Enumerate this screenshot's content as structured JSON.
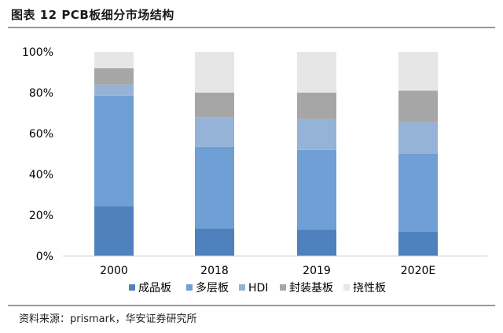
{
  "header": {
    "title": "图表 12 PCB板细分市场结构"
  },
  "footer": {
    "source": "资料来源：prismark，华安证券研究所"
  },
  "chart_data": {
    "type": "bar",
    "stacked": true,
    "categories": [
      "2000",
      "2018",
      "2019",
      "2020E"
    ],
    "series": [
      {
        "name": "成品板",
        "color": "#4f81bd",
        "values": [
          24.5,
          13.5,
          13,
          12
        ]
      },
      {
        "name": "多层板",
        "color": "#6f9fd4",
        "values": [
          54,
          40,
          39,
          38
        ]
      },
      {
        "name": "HDI",
        "color": "#95b3d7",
        "values": [
          5.5,
          14.5,
          15,
          15.5
        ]
      },
      {
        "name": "封装基板",
        "color": "#a6a6a6",
        "values": [
          8,
          12,
          13,
          15.5
        ]
      },
      {
        "name": "挠性板",
        "color": "#e6e6e6",
        "values": [
          8,
          20,
          20,
          19
        ]
      }
    ],
    "y_ticks": [
      "0%",
      "20%",
      "40%",
      "60%",
      "80%",
      "100%"
    ],
    "ylim": [
      0,
      100
    ],
    "legend_position": "bottom"
  }
}
